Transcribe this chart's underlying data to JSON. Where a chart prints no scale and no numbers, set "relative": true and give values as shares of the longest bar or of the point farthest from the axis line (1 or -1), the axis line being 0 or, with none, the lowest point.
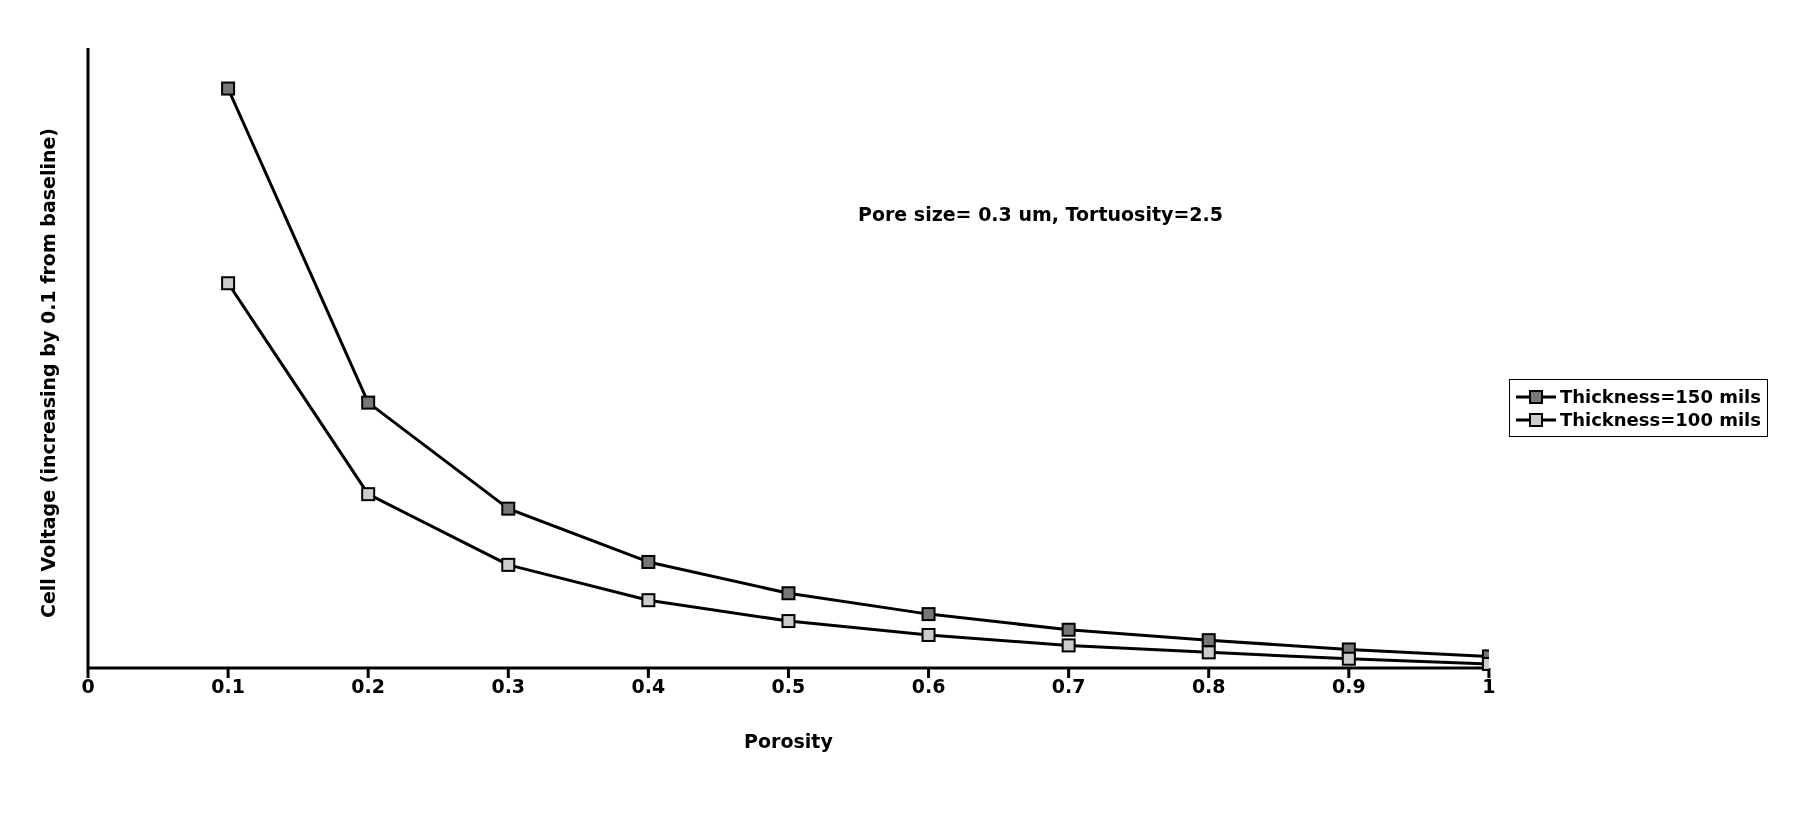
{
  "chart_data": {
    "type": "line",
    "xlabel": "Porosity",
    "ylabel": "Cell Voltage (increasing by 0.1 from baseline)",
    "annotations": [
      "Pore size= 0.3 um, Tortuosity=2.5"
    ],
    "relative": true,
    "x": [
      0.1,
      0.2,
      0.3,
      0.4,
      0.5,
      0.6,
      0.7,
      0.8,
      0.9,
      1
    ],
    "xlim": [
      0,
      1
    ],
    "xticks": [
      0,
      0.1,
      0.2,
      0.3,
      0.4,
      0.5,
      0.6,
      0.7,
      0.8,
      0.9,
      1
    ],
    "series": [
      {
        "name": "Thickness=150 mils",
        "color": "#000000",
        "values": [
          1,
          0.458,
          0.275,
          0.183,
          0.129,
          0.093,
          0.066,
          0.048,
          0.032,
          0.02
        ]
      },
      {
        "name": "Thickness=100 mils",
        "color": "#000000",
        "values": [
          0.664,
          0.3,
          0.178,
          0.117,
          0.081,
          0.057,
          0.039,
          0.027,
          0.016,
          0.007
        ]
      }
    ],
    "marker": "square",
    "line_style": "solid",
    "legend": "right",
    "grid": false
  }
}
